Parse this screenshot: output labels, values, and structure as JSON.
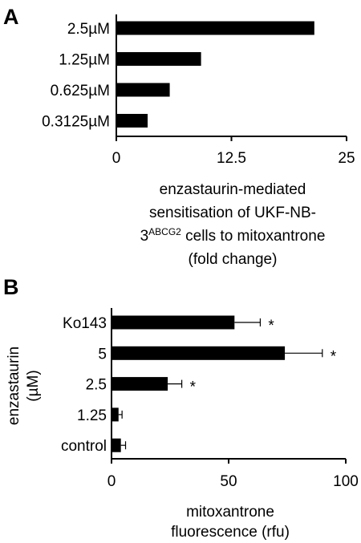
{
  "panels": [
    {
      "letter": "A"
    },
    {
      "letter": "B"
    }
  ],
  "chart_data": [
    {
      "type": "bar",
      "orientation": "horizontal",
      "panel": "A",
      "categories": [
        "2.5µM",
        "1.25µM",
        "0.625µM",
        "0.3125µM"
      ],
      "values": [
        21.5,
        9.2,
        5.8,
        3.4
      ],
      "xlim": [
        0,
        25
      ],
      "xticks": [
        "0",
        "12.5",
        "25"
      ],
      "xlabel_lines": [
        "enzastaurin-mediated",
        "sensitisation of UKF-NB-",
        "3",
        "ABCG2",
        " cells to mitoxantrone",
        "(fold change)"
      ],
      "ylabel": "",
      "bar_color": "#000000",
      "grid": false
    },
    {
      "type": "bar",
      "orientation": "horizontal",
      "panel": "B",
      "categories": [
        "Ko143",
        "5",
        "2.5",
        "1.25",
        "control"
      ],
      "values": [
        52.5,
        74,
        24,
        3,
        4
      ],
      "errors": [
        11,
        16,
        6,
        1.5,
        2
      ],
      "significance": [
        "*",
        "*",
        "*",
        "",
        ""
      ],
      "xlim": [
        0,
        100
      ],
      "xticks": [
        "0",
        "50",
        "100"
      ],
      "xlabel_lines": [
        "mitoxantrone",
        "fluorescence (rfu)"
      ],
      "ylabel_lines": [
        "enzastaurin",
        "(µM)"
      ],
      "bar_color": "#000000",
      "grid": false
    }
  ]
}
